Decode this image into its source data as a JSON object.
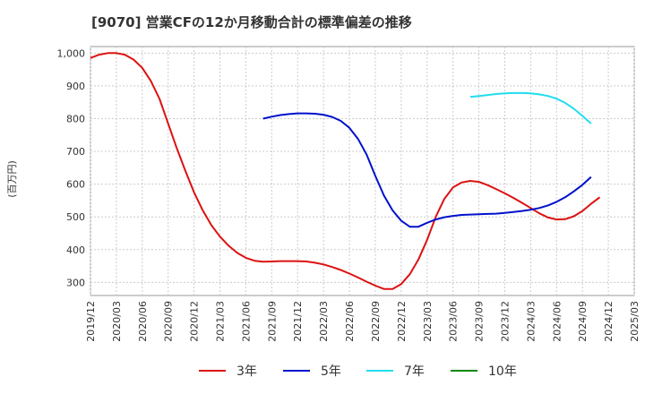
{
  "chart_data": {
    "type": "line",
    "title": "[9070]  営業CFの12か月移動合計の標準偏差の推移",
    "ylabel": "(百万円)",
    "xlabel": "",
    "ylim": [
      260,
      1020
    ],
    "yticks": [
      300,
      400,
      500,
      600,
      700,
      800,
      900,
      1000
    ],
    "ytick_labels": [
      "300",
      "400",
      "500",
      "600",
      "700",
      "800",
      "900",
      "1,000"
    ],
    "xticks": [
      "2019/12",
      "2020/03",
      "2020/06",
      "2020/09",
      "2020/12",
      "2021/03",
      "2021/06",
      "2021/09",
      "2021/12",
      "2022/03",
      "2022/06",
      "2022/09",
      "2022/12",
      "2023/03",
      "2023/06",
      "2023/09",
      "2023/12",
      "2024/03",
      "2024/06",
      "2024/09",
      "2024/12",
      "2025/03"
    ],
    "grid": true,
    "legend_position": "bottom",
    "series": [
      {
        "name": "3年",
        "color": "#dd1111",
        "points": [
          [
            "2019/12",
            985
          ],
          [
            "2020/01",
            995
          ],
          [
            "2020/02",
            1000
          ],
          [
            "2020/03",
            1000
          ],
          [
            "2020/04",
            995
          ],
          [
            "2020/05",
            980
          ],
          [
            "2020/06",
            955
          ],
          [
            "2020/07",
            915
          ],
          [
            "2020/08",
            860
          ],
          [
            "2020/09",
            785
          ],
          [
            "2020/10",
            710
          ],
          [
            "2020/11",
            640
          ],
          [
            "2020/12",
            575
          ],
          [
            "2021/01",
            520
          ],
          [
            "2021/02",
            475
          ],
          [
            "2021/03",
            440
          ],
          [
            "2021/04",
            412
          ],
          [
            "2021/05",
            390
          ],
          [
            "2021/06",
            375
          ],
          [
            "2021/07",
            366
          ],
          [
            "2021/08",
            363
          ],
          [
            "2021/09",
            364
          ],
          [
            "2021/10",
            365
          ],
          [
            "2021/11",
            365
          ],
          [
            "2021/12",
            365
          ],
          [
            "2022/01",
            364
          ],
          [
            "2022/02",
            360
          ],
          [
            "2022/03",
            355
          ],
          [
            "2022/04",
            347
          ],
          [
            "2022/05",
            338
          ],
          [
            "2022/06",
            327
          ],
          [
            "2022/07",
            315
          ],
          [
            "2022/08",
            302
          ],
          [
            "2022/09",
            290
          ],
          [
            "2022/10",
            280
          ],
          [
            "2022/11",
            280
          ],
          [
            "2022/12",
            295
          ],
          [
            "2023/01",
            325
          ],
          [
            "2023/02",
            370
          ],
          [
            "2023/03",
            430
          ],
          [
            "2023/04",
            500
          ],
          [
            "2023/05",
            555
          ],
          [
            "2023/06",
            590
          ],
          [
            "2023/07",
            605
          ],
          [
            "2023/08",
            610
          ],
          [
            "2023/09",
            607
          ],
          [
            "2023/10",
            597
          ],
          [
            "2023/11",
            585
          ],
          [
            "2023/12",
            572
          ],
          [
            "2024/01",
            558
          ],
          [
            "2024/02",
            543
          ],
          [
            "2024/03",
            527
          ],
          [
            "2024/04",
            511
          ],
          [
            "2024/05",
            498
          ],
          [
            "2024/06",
            492
          ],
          [
            "2024/07",
            493
          ],
          [
            "2024/08",
            502
          ],
          [
            "2024/09",
            518
          ],
          [
            "2024/10",
            540
          ],
          [
            "2024/11",
            560
          ]
        ]
      },
      {
        "name": "5年",
        "color": "#0011cc",
        "points": [
          [
            "2021/08",
            800
          ],
          [
            "2021/09",
            806
          ],
          [
            "2021/10",
            811
          ],
          [
            "2021/11",
            814
          ],
          [
            "2021/12",
            816
          ],
          [
            "2022/01",
            816
          ],
          [
            "2022/02",
            815
          ],
          [
            "2022/03",
            812
          ],
          [
            "2022/04",
            805
          ],
          [
            "2022/05",
            793
          ],
          [
            "2022/06",
            772
          ],
          [
            "2022/07",
            738
          ],
          [
            "2022/08",
            690
          ],
          [
            "2022/09",
            625
          ],
          [
            "2022/10",
            565
          ],
          [
            "2022/11",
            520
          ],
          [
            "2022/12",
            488
          ],
          [
            "2023/01",
            470
          ],
          [
            "2023/02",
            470
          ],
          [
            "2023/03",
            482
          ],
          [
            "2023/04",
            492
          ],
          [
            "2023/05",
            499
          ],
          [
            "2023/06",
            503
          ],
          [
            "2023/07",
            506
          ],
          [
            "2023/08",
            507
          ],
          [
            "2023/09",
            508
          ],
          [
            "2023/10",
            509
          ],
          [
            "2023/11",
            510
          ],
          [
            "2023/12",
            512
          ],
          [
            "2024/01",
            515
          ],
          [
            "2024/02",
            518
          ],
          [
            "2024/03",
            522
          ],
          [
            "2024/04",
            527
          ],
          [
            "2024/05",
            535
          ],
          [
            "2024/06",
            546
          ],
          [
            "2024/07",
            560
          ],
          [
            "2024/08",
            578
          ],
          [
            "2024/09",
            598
          ],
          [
            "2024/10",
            622
          ]
        ]
      },
      {
        "name": "7年",
        "color": "#22ddee",
        "points": [
          [
            "2023/08",
            866
          ],
          [
            "2023/09",
            869
          ],
          [
            "2023/10",
            872
          ],
          [
            "2023/11",
            875
          ],
          [
            "2023/12",
            877
          ],
          [
            "2024/01",
            878
          ],
          [
            "2024/02",
            878
          ],
          [
            "2024/03",
            877
          ],
          [
            "2024/04",
            874
          ],
          [
            "2024/05",
            869
          ],
          [
            "2024/06",
            861
          ],
          [
            "2024/07",
            848
          ],
          [
            "2024/08",
            830
          ],
          [
            "2024/09",
            808
          ],
          [
            "2024/10",
            785
          ]
        ]
      },
      {
        "name": "10年",
        "color": "#118811",
        "points": []
      }
    ]
  }
}
